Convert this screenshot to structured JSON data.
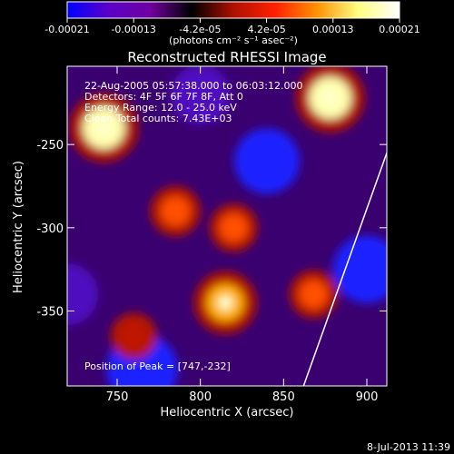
{
  "colorbar": {
    "ticks": [
      "-0.00021",
      "-0.00013",
      "-4.2e-05",
      "4.2e-05",
      "0.00013",
      "0.00021"
    ],
    "unit_label": "(photons cm⁻² s⁻¹ asec⁻²)",
    "colors": [
      "#0000ff",
      "#5a00c8",
      "#7000a0",
      "#000000",
      "#b01000",
      "#ff2000",
      "#ff9000",
      "#ffff80",
      "#ffffff"
    ]
  },
  "chart_data": {
    "type": "heatmap",
    "title": "Reconstructed RHESSI Image",
    "xlabel": "Heliocentric X (arcsec)",
    "ylabel": "Heliocentric Y (arcsec)",
    "xlim": [
      720,
      912
    ],
    "ylim": [
      -395,
      -203
    ],
    "xticks": [
      750,
      800,
      850,
      900
    ],
    "yticks": [
      -250,
      -300,
      -350
    ],
    "annotations": [
      "22-Aug-2005 05:57:38.000 to 06:03:12.000",
      "Detectors: 4F 5F 6F 7F 8F, Att 0",
      "Energy Range: 12.0 - 25.0 keV",
      "Clean  Total counts: 7.43E+03"
    ],
    "peak_label": "Position of Peak = [747,-232]",
    "peak_position": [
      747,
      -232
    ],
    "limb_line": [
      [
        862,
        -395
      ],
      [
        912,
        -255
      ]
    ],
    "bright_sources": [
      {
        "x": 742,
        "y": -240,
        "intensity": 0.00021
      },
      {
        "x": 878,
        "y": -222,
        "intensity": 0.00021
      },
      {
        "x": 815,
        "y": -345,
        "intensity": 0.00018
      },
      {
        "x": 785,
        "y": -290,
        "intensity": 0.00012
      },
      {
        "x": 820,
        "y": -300,
        "intensity": 0.00011
      },
      {
        "x": 760,
        "y": -365,
        "intensity": 0.0001
      },
      {
        "x": 868,
        "y": -340,
        "intensity": 0.00011
      }
    ],
    "dim_regions": [
      {
        "x": 840,
        "y": -260,
        "intensity": -0.00015
      },
      {
        "x": 900,
        "y": -325,
        "intensity": -0.00017
      },
      {
        "x": 765,
        "y": -385,
        "intensity": -0.0002
      },
      {
        "x": 720,
        "y": -340,
        "intensity": -0.00012
      },
      {
        "x": 800,
        "y": -220,
        "intensity": -0.0001
      }
    ]
  },
  "timestamp": "8-Jul-2013 11:39"
}
